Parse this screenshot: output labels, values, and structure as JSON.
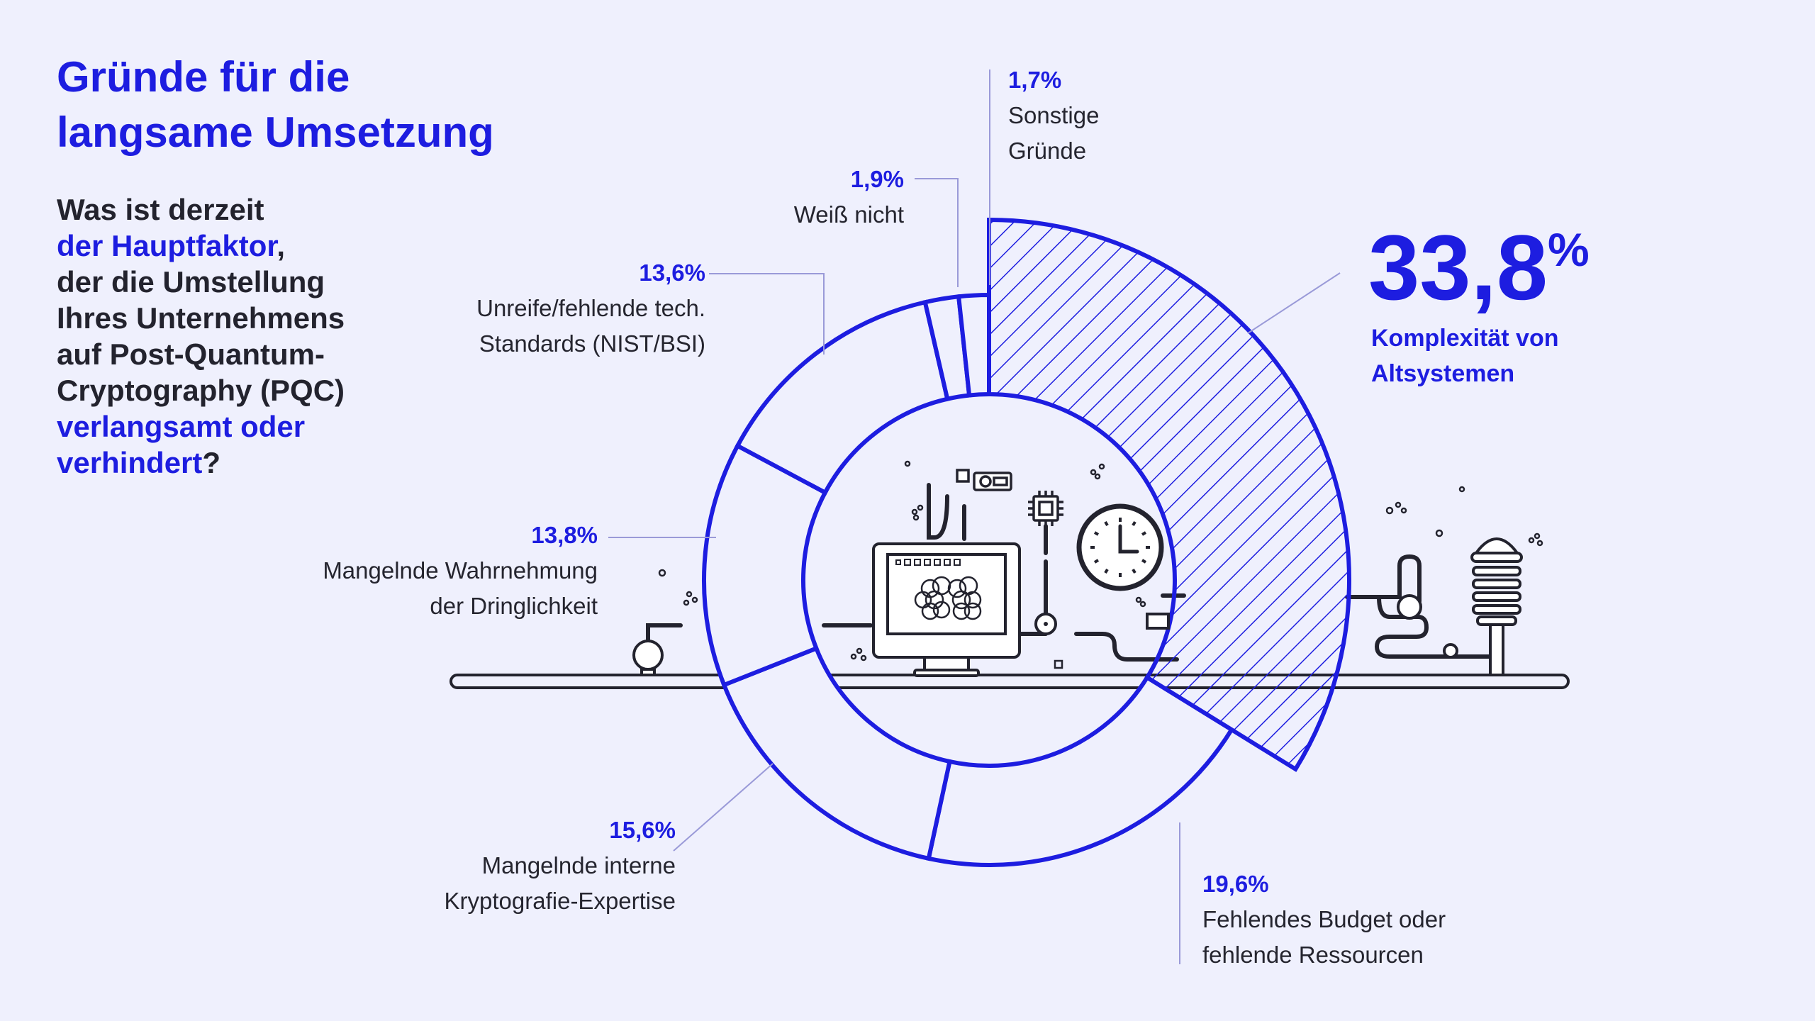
{
  "title_line1": "Gründe für die",
  "title_line2": "langsame Umsetzung",
  "question": {
    "p1": "Was ist derzeit",
    "p2": "der Hauptfaktor",
    "p3": ",",
    "p4": "der die Umstellung",
    "p5": "Ihres Unternehmens",
    "p6": "auf Post-Quantum-",
    "p7": "Cryptography (PQC)",
    "p8": "verlangsamt oder",
    "p9": "verhindert",
    "p10": "?"
  },
  "colors": {
    "accent": "#1d1de0",
    "background": "#eff0fd",
    "line": "#23232e"
  },
  "illustration_icons": [
    "monitor-icon",
    "brain-icon",
    "clock-icon",
    "chip-icon",
    "radio-icon",
    "weather-station-icon",
    "pipe-network"
  ],
  "chart_data": {
    "type": "pie",
    "style": "donut",
    "highlight": "Komplexität von Altsystemen",
    "slices": [
      {
        "label_line1": "Komplexität von",
        "label_line2": "Altsystemen",
        "display": "33,8",
        "suffix": "%",
        "value": 33.8
      },
      {
        "label_line1": "Fehlendes Budget oder",
        "label_line2": "fehlende Ressourcen",
        "display": "19,6%",
        "value": 19.6
      },
      {
        "label_line1": "Mangelnde interne",
        "label_line2": "Kryptografie-Expertise",
        "display": "15,6%",
        "value": 15.6
      },
      {
        "label_line1": "Mangelnde Wahrnehmung",
        "label_line2": "der Dringlichkeit",
        "display": "13,8%",
        "value": 13.8
      },
      {
        "label_line1": "Unreife/fehlende tech.",
        "label_line2": "Standards (NIST/BSI)",
        "display": "13,6%",
        "value": 13.6
      },
      {
        "label_line1": "Weiß nicht",
        "label_line2": "",
        "display": "1,9%",
        "value": 1.9
      },
      {
        "label_line1": "Sonstige",
        "label_line2": "Gründe",
        "display": "1,7%",
        "value": 1.7
      }
    ]
  }
}
